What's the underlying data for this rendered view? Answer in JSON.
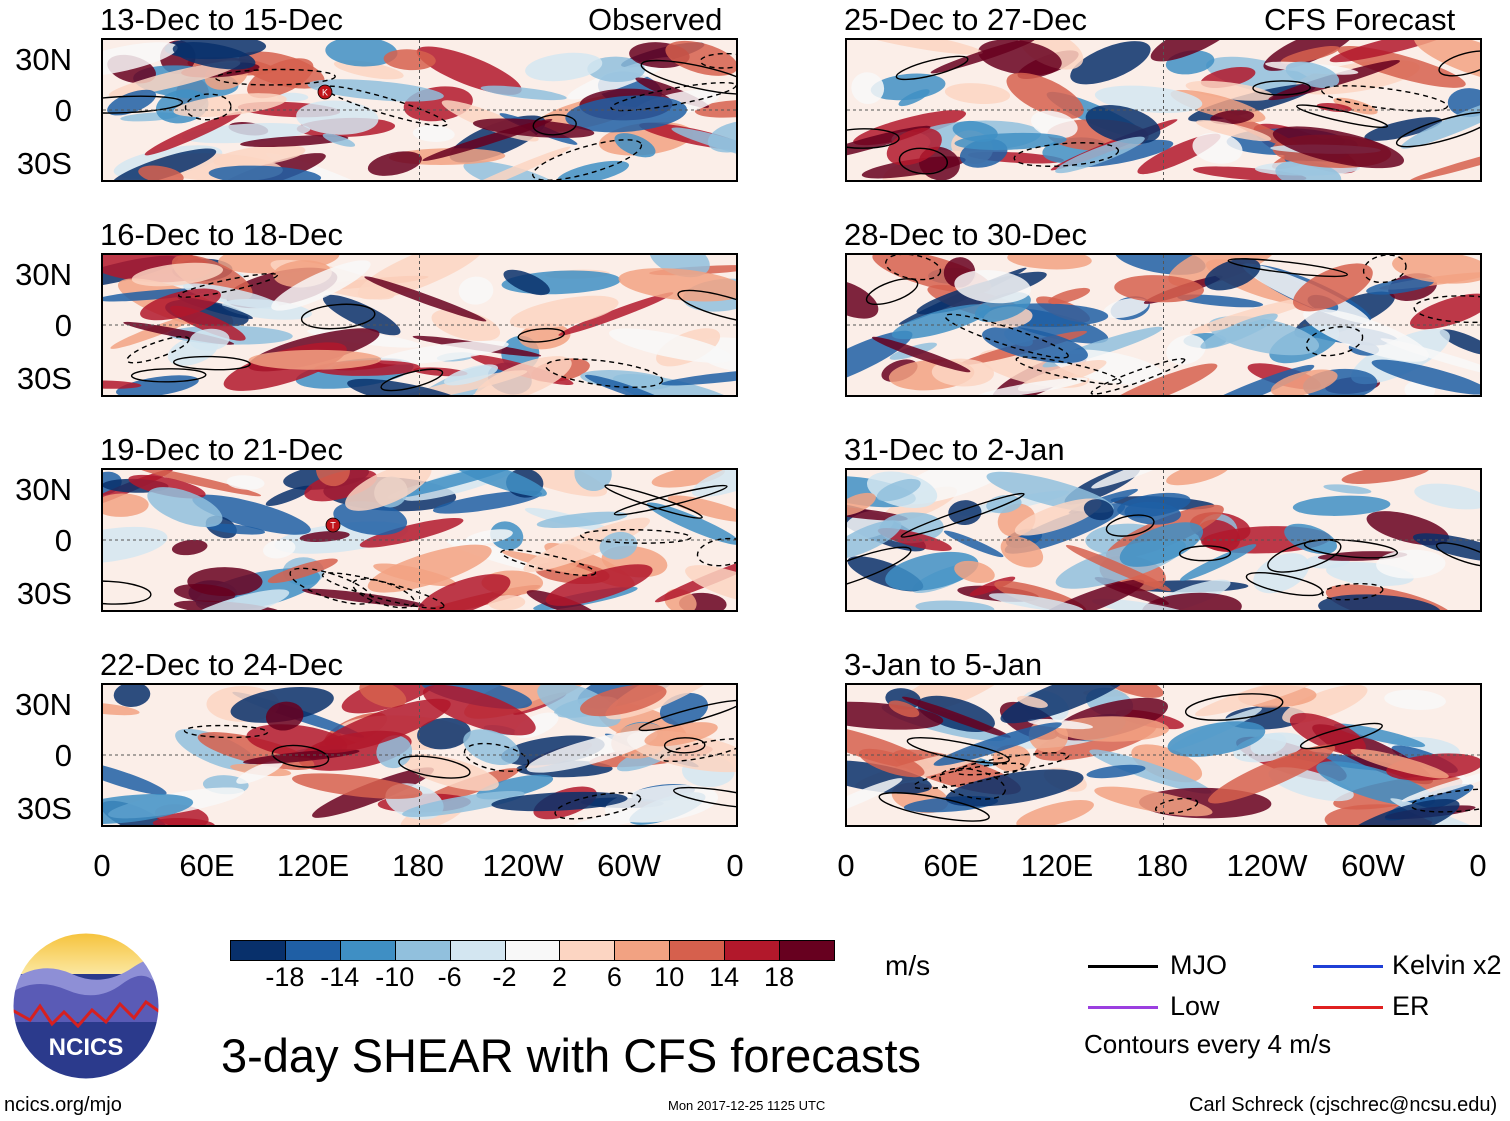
{
  "header": {
    "left_title": "Observed",
    "right_title": "CFS Forecast"
  },
  "panels_left": [
    {
      "title": "13-Dec to 15-Dec"
    },
    {
      "title": "16-Dec to 18-Dec"
    },
    {
      "title": "19-Dec to 21-Dec"
    },
    {
      "title": "22-Dec to 24-Dec"
    }
  ],
  "panels_right": [
    {
      "title": "25-Dec to 27-Dec"
    },
    {
      "title": "28-Dec to 30-Dec"
    },
    {
      "title": "31-Dec to 2-Jan"
    },
    {
      "title": "3-Jan to 5-Jan"
    }
  ],
  "lat_labels": [
    "30N",
    "0",
    "30S"
  ],
  "lon_labels": [
    "0",
    "60E",
    "120E",
    "180",
    "120W",
    "60W",
    "0"
  ],
  "storm_markers": [
    {
      "panel": 0,
      "letter": "K"
    },
    {
      "panel": 2,
      "letter": "T"
    }
  ],
  "colorbar": {
    "unit": "m/s",
    "ticks": [
      "-18",
      "-14",
      "-10",
      "-6",
      "-2",
      "2",
      "6",
      "10",
      "14",
      "18"
    ],
    "colors": [
      "#08306b",
      "#1f5fa5",
      "#3f8fc4",
      "#91c0dd",
      "#d3e6f1",
      "#f8f8f8",
      "#fcd5c2",
      "#f2a282",
      "#d6604d",
      "#b2182b",
      "#67001f"
    ]
  },
  "legend": {
    "items": [
      {
        "label": "MJO",
        "color": "#000000"
      },
      {
        "label": "Kelvin x2",
        "color": "#1f3fd6"
      },
      {
        "label": "Low",
        "color": "#9b3fe0"
      },
      {
        "label": "ER",
        "color": "#e02020"
      }
    ],
    "note": "Contours every 4 m/s"
  },
  "footer": {
    "main_title": "3-day SHEAR with CFS forecasts",
    "url": "ncics.org/mjo",
    "timestamp": "Mon 2017-12-25 1125 UTC",
    "credit": "Carl Schreck (cjschrec@ncsu.edu)",
    "logo_text": "NCICS"
  }
}
